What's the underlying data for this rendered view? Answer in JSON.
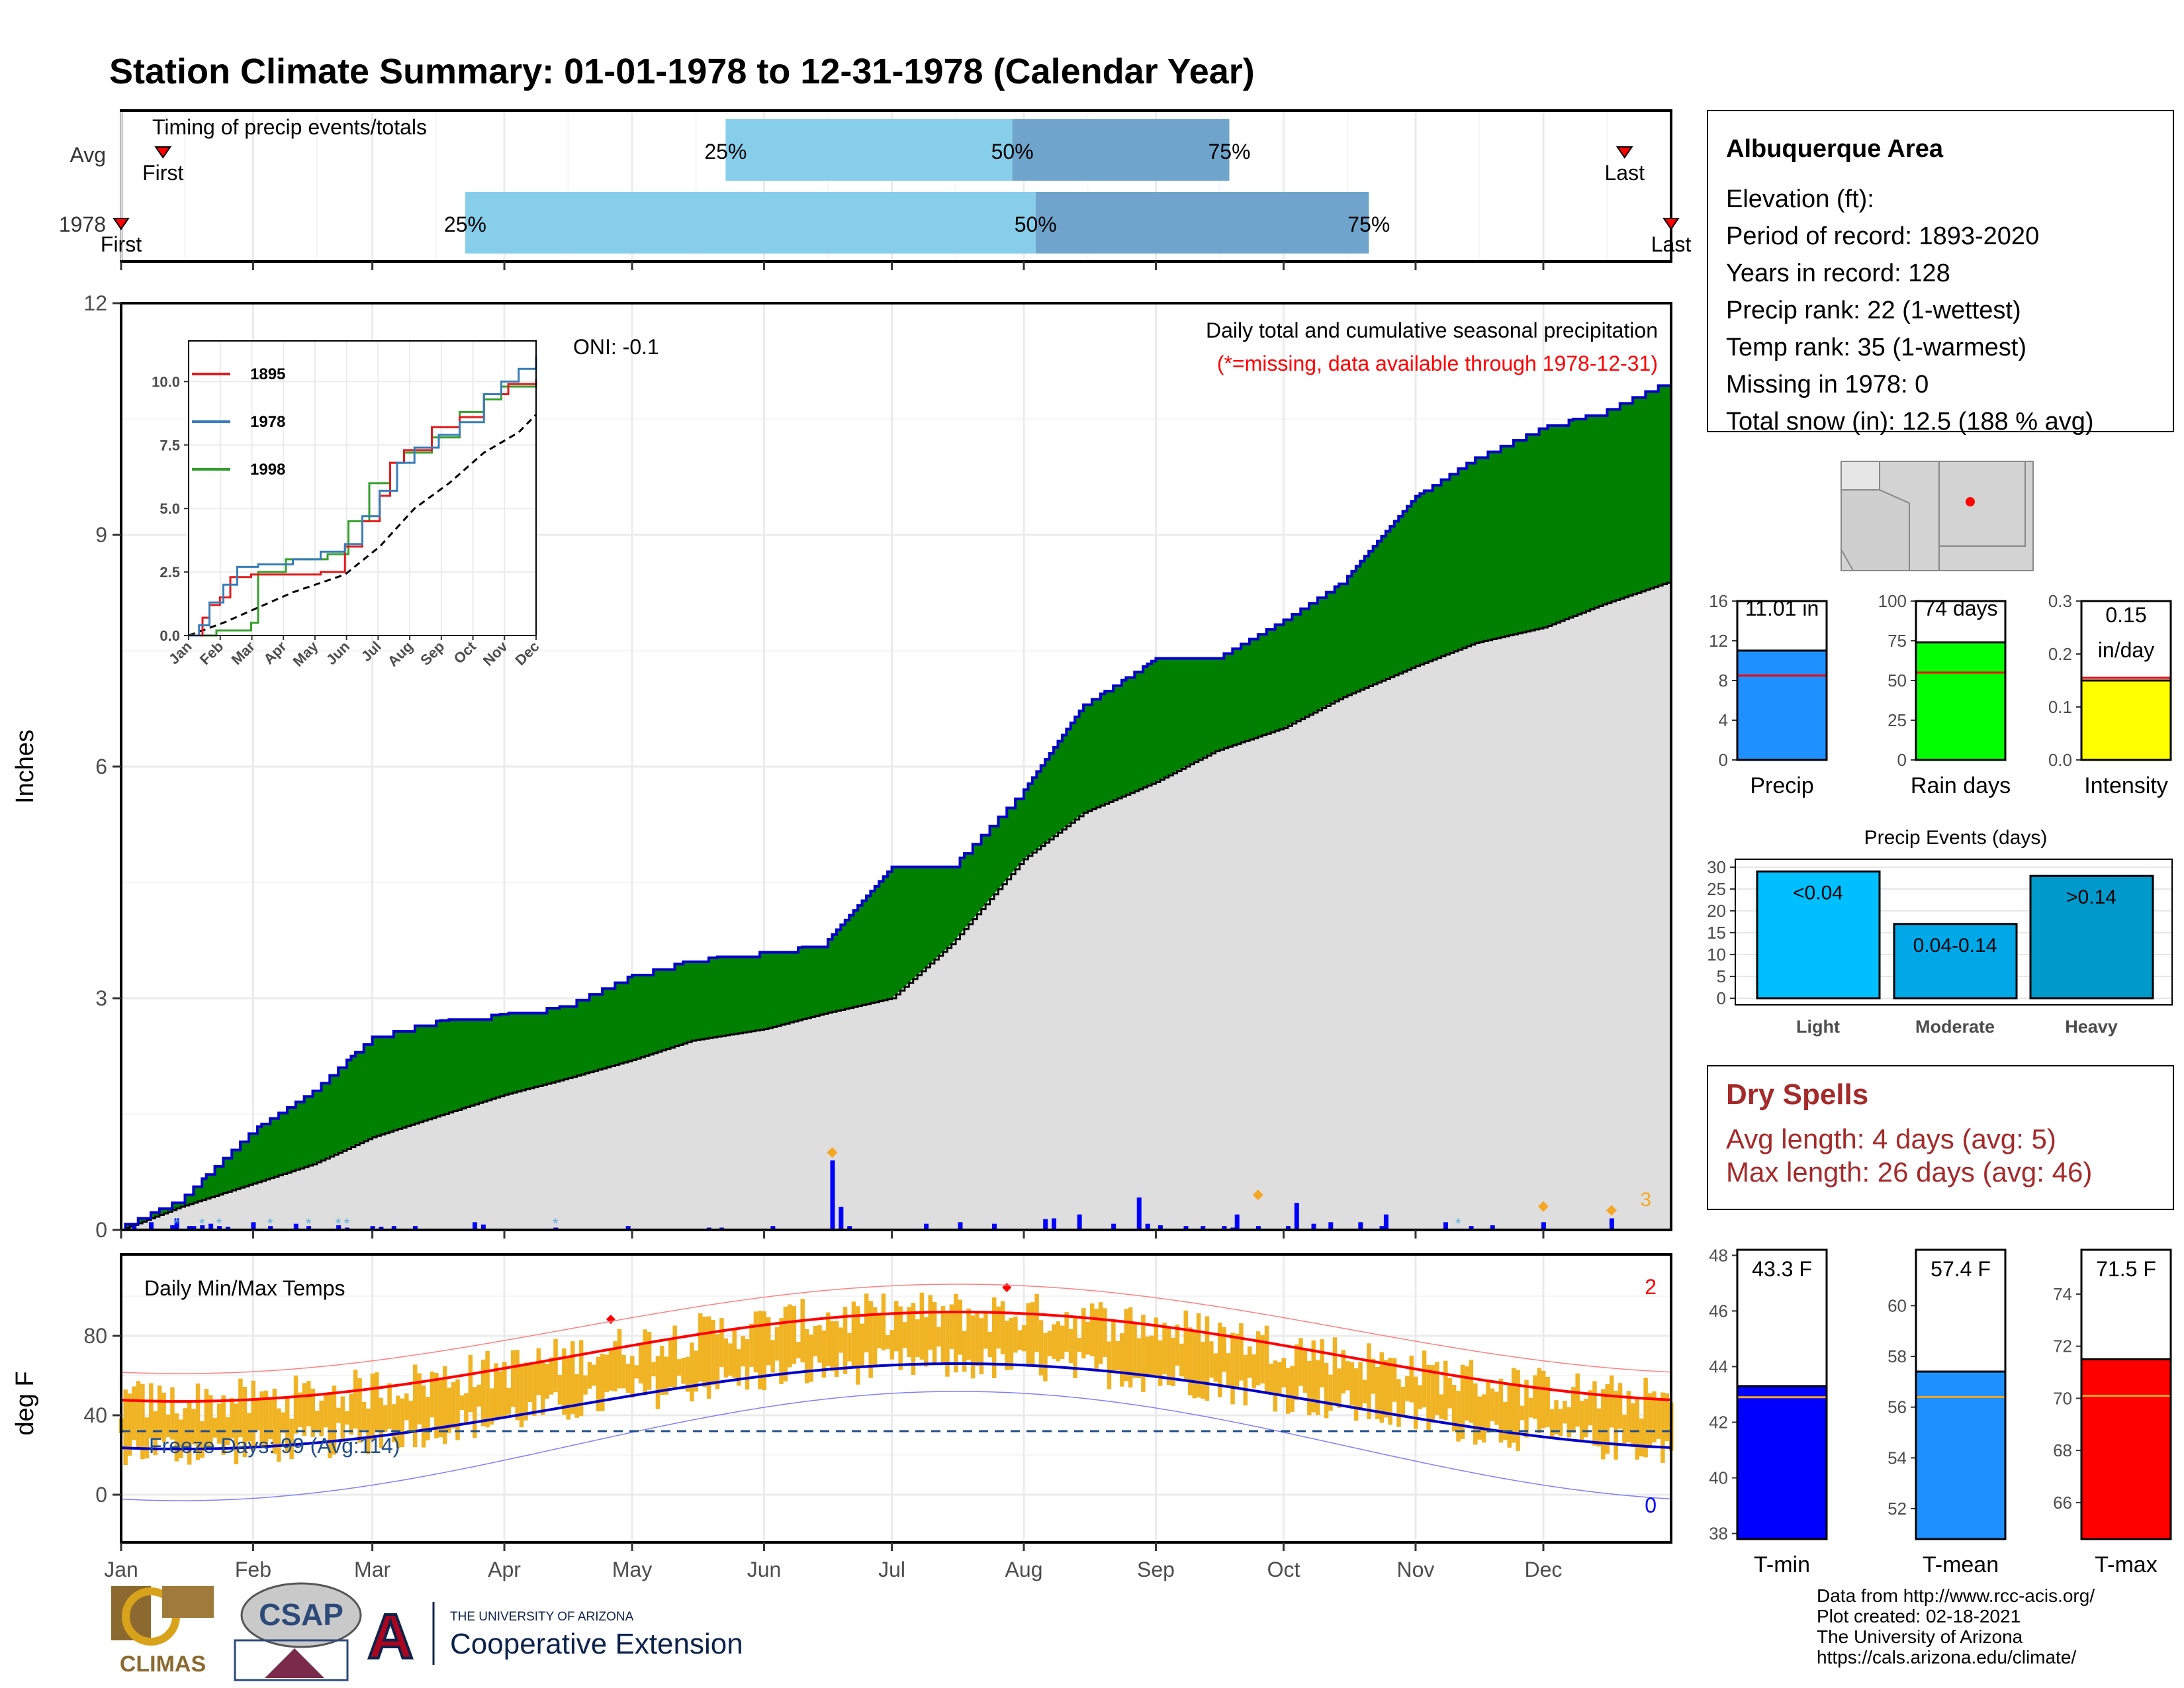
{
  "title": "Station Climate Summary: 01-01-1978 to 12-31-1978 (Calendar Year)",
  "colors": {
    "title": "#000080",
    "q1": "#87ceeb",
    "q2": "#6fa5cc",
    "climo_fill": "#dedede",
    "obs_fill": "#008000",
    "obs_line": "#0000cd",
    "daily_bar": "#0000ff",
    "temp_bar": "#f0b323",
    "tmax_line": "#ff0000",
    "tmin_line": "#0000cd",
    "freeze_line": "#1f4e8c",
    "missing": "#ff0000"
  },
  "months": [
    "Jan",
    "Feb",
    "Mar",
    "Apr",
    "May",
    "Jun",
    "Jul",
    "Aug",
    "Sep",
    "Oct",
    "Nov",
    "Dec"
  ],
  "timing": {
    "label": "Timing of precip events/totals",
    "rows": [
      {
        "name": "Avg",
        "first_label": "First",
        "last_label": "Last",
        "first": 0.027,
        "last": 0.97,
        "q25": 0.39,
        "q50": 0.575,
        "q75": 0.715,
        "q25_label": "25%",
        "q50_label": "50%",
        "q75_label": "75%"
      },
      {
        "name": "1978",
        "first_label": "First",
        "last_label": "Last",
        "first": 0.0,
        "last": 1.0,
        "q25": 0.222,
        "q50": 0.59,
        "q75": 0.805,
        "q25_label": "25%",
        "q50_label": "50%",
        "q75_label": "75%"
      }
    ]
  },
  "precip_panel": {
    "ylabel": "Inches",
    "ylim": [
      0,
      12
    ],
    "yticks": [
      "0",
      "3",
      "6",
      "9",
      "12"
    ],
    "oni": "ONI: -0.1",
    "note": "Daily total and cumulative seasonal precipitation",
    "missing_note": "(*=missing, data available through 1978-12-31)",
    "right_count": "3"
  },
  "inset": {
    "yticks": [
      "0.0",
      "2.5",
      "5.0",
      "7.5",
      "10.0"
    ],
    "xticks": [
      "Jan",
      "Feb",
      "Mar",
      "Apr",
      "May",
      "Jun",
      "Jul",
      "Aug",
      "Sep",
      "Oct",
      "Nov",
      "Dec"
    ],
    "legend": [
      {
        "name": "1895",
        "color": "#e31a1c"
      },
      {
        "name": "1978",
        "color": "#377eb8"
      },
      {
        "name": "1998",
        "color": "#33a02c"
      }
    ]
  },
  "temp_panel": {
    "ylabel": "deg F",
    "label": "Daily Min/Max Temps",
    "yticks": [
      "0",
      "40",
      "80"
    ],
    "freeze_label": "Freeze Days: 99 (Avg:114)",
    "right_top": "2",
    "right_bottom": "0"
  },
  "info": {
    "station": "Albuquerque Area",
    "lines": [
      "Elevation (ft):",
      "Period of record: 1893-2020",
      "Years in record: 128",
      "Precip rank: 22 (1-wettest)",
      "Temp rank: 35 (1-warmest)",
      "Missing in 1978: 0",
      "Total snow (in): 12.5 (188 % avg)"
    ]
  },
  "stats": [
    {
      "name": "Precip",
      "value": 11.01,
      "avg": 8.5,
      "label": "11.01 in",
      "ticks": [
        "0",
        "4",
        "8",
        "12",
        "16"
      ],
      "max": 16,
      "color": "#1e90ff"
    },
    {
      "name": "Rain days",
      "value": 74,
      "avg": 55,
      "label": "74 days",
      "ticks": [
        "0",
        "25",
        "50",
        "75",
        "100"
      ],
      "max": 100,
      "color": "#00ff00"
    },
    {
      "name": "Intensity",
      "value": 0.15,
      "avg": 0.155,
      "label": "0.15",
      "label2": "in/day",
      "ticks": [
        "0.0",
        "0.1",
        "0.2",
        "0.3"
      ],
      "max": 0.3,
      "color": "#ffff00"
    }
  ],
  "events": {
    "title": "Precip Events (days)",
    "ticks": [
      "0",
      "5",
      "10",
      "15",
      "20",
      "25",
      "30"
    ],
    "max": 30,
    "bars": [
      {
        "name": "Light",
        "value": 29,
        "label": "<0.04",
        "color": "#00bfff"
      },
      {
        "name": "Moderate",
        "value": 17,
        "label": "0.04-0.14",
        "color": "#00a8e8"
      },
      {
        "name": "Heavy",
        "value": 28,
        "label": ">0.14",
        "color": "#0099cc"
      }
    ]
  },
  "dry": {
    "title": "Dry Spells",
    "avg_line": "Avg length: 4 days (avg: 5)",
    "max_line": "Max length: 26 days (avg: 46)"
  },
  "temps": [
    {
      "name": "T-min",
      "value": 43.3,
      "avg": 42.9,
      "label": "43.3 F",
      "min": 37.8,
      "max": 48.2,
      "ticks": [
        "38",
        "40",
        "42",
        "44",
        "46",
        "48"
      ],
      "color": "#0000ff"
    },
    {
      "name": "T-mean",
      "value": 57.4,
      "avg": 56.4,
      "label": "57.4 F",
      "min": 50.8,
      "max": 62.2,
      "ticks": [
        "52",
        "54",
        "56",
        "58",
        "60"
      ],
      "color": "#1e90ff"
    },
    {
      "name": "T-max",
      "value": 71.5,
      "avg": 70.1,
      "label": "71.5 F",
      "min": 64.6,
      "max": 75.7,
      "ticks": [
        "66",
        "68",
        "70",
        "72",
        "74"
      ],
      "color": "#ff0000"
    }
  ],
  "credits": [
    "Data from http://www.rcc-acis.org/",
    "Plot created: 02-18-2021",
    "The University of Arizona",
    "https://cals.arizona.edu/climate/"
  ],
  "logos": {
    "climas": "CLIMAS",
    "csap": "CSAP",
    "ua_small": "THE UNIVERSITY OF ARIZONA",
    "ua_big": "Cooperative Extension"
  },
  "chart_data": {
    "type": "area",
    "title": "Station Climate Summary: 01-01-1978 to 12-31-1978 (Calendar Year)",
    "ylabel": "Inches",
    "ylim": [
      0,
      12
    ],
    "x": [
      "01-01",
      "01-15",
      "02-01",
      "02-15",
      "03-01",
      "03-15",
      "04-01",
      "04-15",
      "05-01",
      "05-15",
      "06-01",
      "06-15",
      "07-01",
      "07-15",
      "08-01",
      "08-15",
      "09-01",
      "09-15",
      "10-01",
      "10-15",
      "11-01",
      "11-15",
      "12-01",
      "12-15",
      "12-31"
    ],
    "series": [
      {
        "name": "1978",
        "values": [
          0.05,
          0.4,
          1.3,
          1.8,
          2.5,
          2.7,
          2.8,
          2.9,
          3.3,
          3.5,
          3.6,
          3.7,
          4.7,
          4.7,
          5.7,
          6.8,
          7.4,
          7.4,
          7.9,
          8.4,
          9.5,
          10.0,
          10.4,
          10.6,
          11.01
        ]
      },
      {
        "name": "Avg",
        "values": [
          0.0,
          0.3,
          0.6,
          0.85,
          1.2,
          1.45,
          1.75,
          1.95,
          2.2,
          2.45,
          2.6,
          2.8,
          3.0,
          3.7,
          4.8,
          5.4,
          5.8,
          6.2,
          6.5,
          6.9,
          7.3,
          7.6,
          7.8,
          8.1,
          8.4
        ]
      }
    ]
  }
}
